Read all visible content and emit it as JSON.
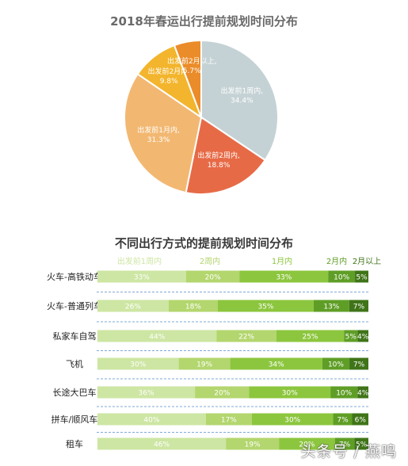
{
  "colors": {
    "pie": [
      "#c5d2d5",
      "#e76a46",
      "#f2b872",
      "#f3b52d",
      "#eb8c2a"
    ],
    "bars": [
      "#cde6a3",
      "#b3d66e",
      "#8cc63e",
      "#5f9e26",
      "#3f7418"
    ],
    "legend": [
      "#cde6a3",
      "#b3d66e",
      "#8cc63e",
      "#5f9e26",
      "#3f7418"
    ]
  },
  "watermark": "头条号 / 燕鸣",
  "chart_data": [
    {
      "type": "pie",
      "title": "2018年春运出行提前规划时间分布",
      "slices": [
        {
          "label": "出发前1周内,",
          "pct_label": "34.4%",
          "value": 34.4
        },
        {
          "label": "出发前2周内,",
          "pct_label": "18.8%",
          "value": 18.8
        },
        {
          "label": "出发前1月内,",
          "pct_label": "31.3%",
          "value": 31.3
        },
        {
          "label": "出发前2月内,",
          "pct_label": "9.8%",
          "value": 9.8
        },
        {
          "label": "出发前2月以上,",
          "pct_label": "5.7%",
          "value": 5.7
        }
      ]
    },
    {
      "type": "bar",
      "stacked": true,
      "orientation": "horizontal",
      "title": "不同出行方式的提前规划时间分布",
      "categories": [
        "火车-高铁动车",
        "火车-普通列车",
        "私家车自驾",
        "飞机",
        "长途大巴车",
        "拼车/顺风车",
        "租车"
      ],
      "series": [
        {
          "name": "出发前1周内",
          "values": [
            33,
            26,
            44,
            30,
            36,
            40,
            46
          ]
        },
        {
          "name": "2周内",
          "values": [
            20,
            18,
            22,
            19,
            20,
            17,
            19
          ]
        },
        {
          "name": "1月内",
          "values": [
            33,
            35,
            25,
            34,
            30,
            30,
            20
          ]
        },
        {
          "name": "2月内",
          "values": [
            10,
            13,
            5,
            10,
            10,
            7,
            7
          ]
        },
        {
          "name": "2月以上",
          "values": [
            5,
            7,
            4,
            7,
            4,
            6,
            5
          ]
        }
      ]
    }
  ]
}
